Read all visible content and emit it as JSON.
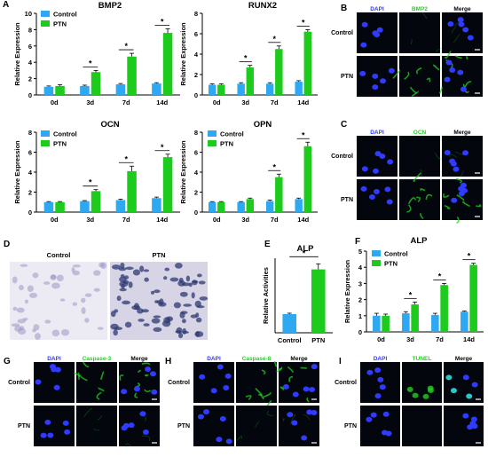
{
  "colors": {
    "control": "#2ea8f0",
    "ptn": "#1ccb1c",
    "dapi": "#2f3bff",
    "green": "#22d022",
    "micro_bg": "#03060c"
  },
  "figure": {
    "panel_letters": [
      "A",
      "B",
      "C",
      "D",
      "E",
      "F",
      "G",
      "H",
      "I"
    ],
    "legend": {
      "control": "Control",
      "ptn": "PTN"
    },
    "micrographs": {
      "B": {
        "cols": [
          "DAPI",
          "BMP2",
          "Merge"
        ],
        "rows": [
          "Control",
          "PTN"
        ]
      },
      "C": {
        "cols": [
          "DAPI",
          "OCN",
          "Merge"
        ],
        "rows": [
          "Control",
          "PTN"
        ]
      },
      "G": {
        "cols": [
          "DAPI",
          "Caspase-3",
          "Merge"
        ],
        "rows": [
          "Control",
          "PTN"
        ]
      },
      "H": {
        "cols": [
          "DAPI",
          "Caspase-8",
          "Merge"
        ],
        "rows": [
          "Control",
          "PTN"
        ]
      },
      "I": {
        "cols": [
          "DAPI",
          "TUNEL",
          "Merge"
        ],
        "rows": [
          "Control",
          "PTN"
        ]
      }
    },
    "stain_panel_D": {
      "labels": [
        "Control",
        "PTN"
      ]
    },
    "sig_marker": "*"
  },
  "chart_data": [
    {
      "id": "bmp2",
      "type": "bar",
      "title": "BMP2",
      "ylabel": "Relative Expression",
      "categories": [
        "0d",
        "3d",
        "7d",
        "14d"
      ],
      "ylim": [
        0,
        10
      ],
      "yticks": [
        0,
        2,
        4,
        6,
        8,
        10
      ],
      "series": [
        {
          "name": "Control",
          "values": [
            1.0,
            1.1,
            1.3,
            1.4
          ]
        },
        {
          "name": "PTN",
          "values": [
            1.1,
            2.8,
            4.7,
            7.6
          ]
        }
      ],
      "errors": [
        [
          0.1,
          0.1,
          0.1,
          0.1
        ],
        [
          0.15,
          0.2,
          0.4,
          0.5
        ]
      ],
      "significant": [
        false,
        true,
        true,
        true
      ]
    },
    {
      "id": "runx2",
      "type": "bar",
      "title": "RUNX2",
      "ylabel": "Relative Expression",
      "categories": [
        "0d",
        "3d",
        "7d",
        "14d"
      ],
      "ylim": [
        0,
        8
      ],
      "yticks": [
        0,
        2,
        4,
        6,
        8
      ],
      "series": [
        {
          "name": "Control",
          "values": [
            1.0,
            1.1,
            1.1,
            1.3
          ]
        },
        {
          "name": "PTN",
          "values": [
            1.0,
            2.7,
            4.5,
            6.2
          ]
        }
      ],
      "errors": [
        [
          0.1,
          0.1,
          0.1,
          0.1
        ],
        [
          0.1,
          0.2,
          0.3,
          0.2
        ]
      ],
      "significant": [
        false,
        true,
        true,
        true
      ]
    },
    {
      "id": "ocn",
      "type": "bar",
      "title": "OCN",
      "ylabel": "Relative Expression",
      "categories": [
        "0d",
        "3d",
        "7d",
        "14d"
      ],
      "ylim": [
        0,
        8
      ],
      "yticks": [
        0,
        2,
        4,
        6,
        8
      ],
      "series": [
        {
          "name": "Control",
          "values": [
            1.0,
            1.1,
            1.2,
            1.4
          ]
        },
        {
          "name": "PTN",
          "values": [
            1.0,
            2.1,
            4.1,
            5.5
          ]
        }
      ],
      "errors": [
        [
          0.05,
          0.05,
          0.1,
          0.1
        ],
        [
          0.05,
          0.15,
          0.5,
          0.3
        ]
      ],
      "significant": [
        false,
        true,
        true,
        true
      ]
    },
    {
      "id": "opn",
      "type": "bar",
      "title": "OPN",
      "ylabel": "Relative Expression",
      "categories": [
        "0d",
        "3d",
        "7d",
        "14d"
      ],
      "ylim": [
        0,
        8
      ],
      "yticks": [
        0,
        2,
        4,
        6,
        8
      ],
      "series": [
        {
          "name": "Control",
          "values": [
            1.0,
            1.0,
            1.1,
            1.3
          ]
        },
        {
          "name": "PTN",
          "values": [
            1.0,
            1.3,
            3.5,
            6.6
          ]
        }
      ],
      "errors": [
        [
          0.05,
          0.05,
          0.1,
          0.1
        ],
        [
          0.05,
          0.1,
          0.3,
          0.4
        ]
      ],
      "significant": [
        false,
        false,
        true,
        true
      ]
    },
    {
      "id": "alp_activity",
      "type": "bar",
      "title": "ALP",
      "ylabel": "Relative Activities",
      "categories": [
        "Control",
        "PTN"
      ],
      "ylim": [
        0,
        4
      ],
      "yticks": [],
      "series": [
        {
          "name": "",
          "values": [
            1.0,
            3.4
          ]
        }
      ],
      "errors": [
        [
          0.05,
          0.3
        ]
      ],
      "significant_pair": true
    },
    {
      "id": "alp_expression",
      "type": "bar",
      "title": "ALP",
      "ylabel": "Relative Expression",
      "categories": [
        "0d",
        "3d",
        "7d",
        "14d"
      ],
      "ylim": [
        0,
        5
      ],
      "yticks": [
        0,
        1,
        2,
        3,
        4,
        5
      ],
      "series": [
        {
          "name": "Control",
          "values": [
            1.0,
            1.15,
            1.05,
            1.25
          ]
        },
        {
          "name": "PTN",
          "values": [
            1.0,
            1.7,
            2.9,
            4.15
          ]
        }
      ],
      "errors": [
        [
          0.15,
          0.1,
          0.1,
          0.05
        ],
        [
          0.1,
          0.15,
          0.1,
          0.1
        ]
      ],
      "significant": [
        false,
        true,
        true,
        true
      ]
    }
  ]
}
